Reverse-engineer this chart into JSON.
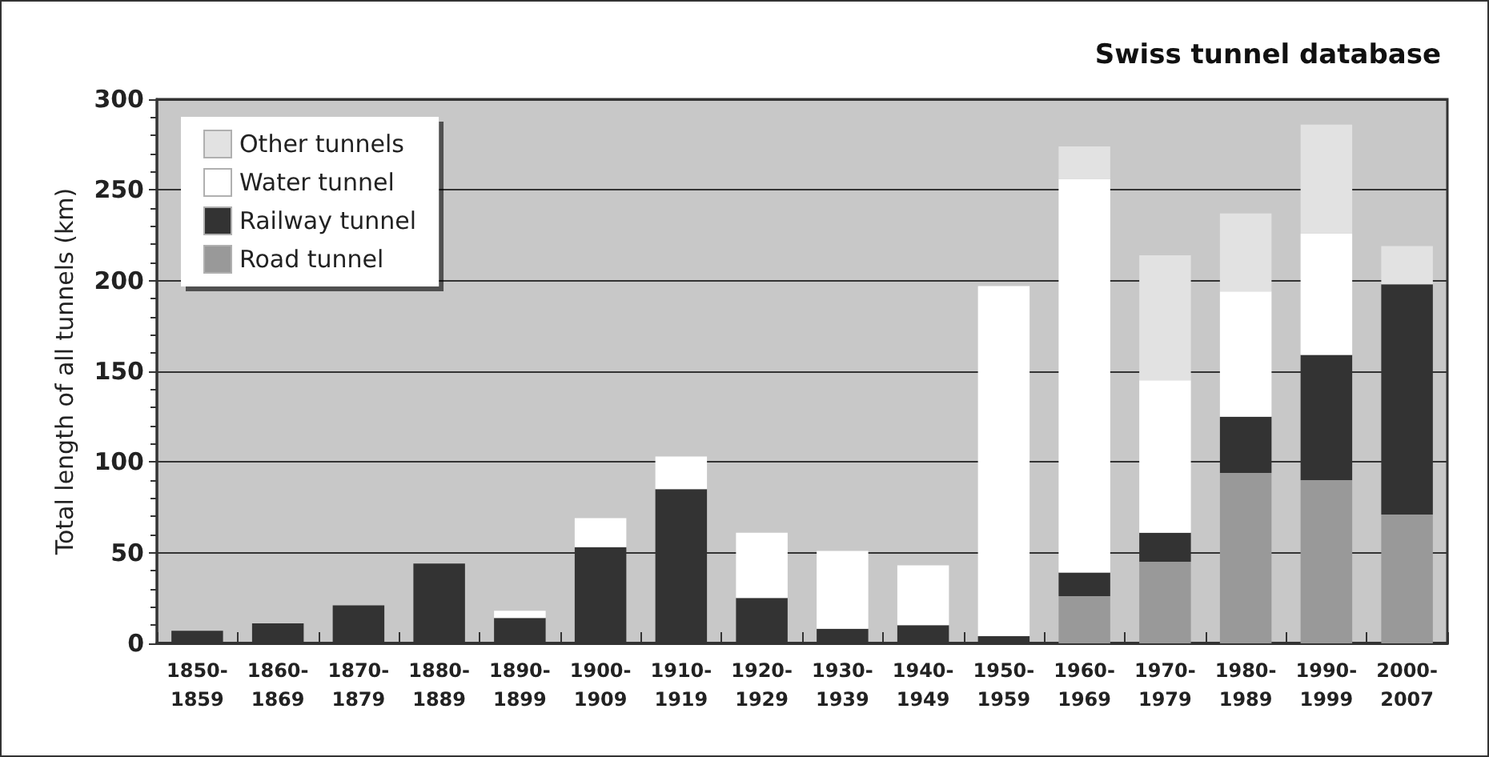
{
  "chart_data": {
    "type": "bar",
    "title": "Swiss tunnel database",
    "ylabel": "Total length of all tunnels (km)",
    "categories": [
      "1850-1859",
      "1860-1869",
      "1870-1879",
      "1880-1889",
      "1890-1899",
      "1900-1909",
      "1910-1919",
      "1920-1929",
      "1930-1939",
      "1940-1949",
      "1950-1959",
      "1960-1969",
      "1970-1979",
      "1980-1989",
      "1990-1999",
      "2000-2007"
    ],
    "stacked": true,
    "series": [
      {
        "name": "Road tunnel",
        "color": "#999999",
        "values": [
          0,
          0,
          0,
          0,
          0,
          0,
          0,
          0,
          0,
          0,
          0,
          26,
          45,
          94,
          90,
          71
        ]
      },
      {
        "name": "Railway tunnel",
        "color": "#333333",
        "values": [
          7,
          11,
          21,
          44,
          14,
          53,
          85,
          25,
          8,
          10,
          4,
          13,
          16,
          31,
          69,
          127
        ]
      },
      {
        "name": "Water tunnel",
        "color": "#ffffff",
        "values": [
          0,
          0,
          0,
          0,
          4,
          16,
          18,
          36,
          43,
          33,
          193,
          217,
          84,
          69,
          67,
          0
        ]
      },
      {
        "name": "Other tunnels",
        "color": "#e2e2e2",
        "values": [
          0,
          0,
          0,
          0,
          0,
          0,
          0,
          0,
          0,
          0,
          0,
          18,
          69,
          43,
          60,
          21
        ]
      }
    ],
    "ylim": [
      0,
      300
    ],
    "yticks": [
      0,
      50,
      100,
      150,
      200,
      250,
      300
    ],
    "grid": "y",
    "legend": "top left"
  }
}
